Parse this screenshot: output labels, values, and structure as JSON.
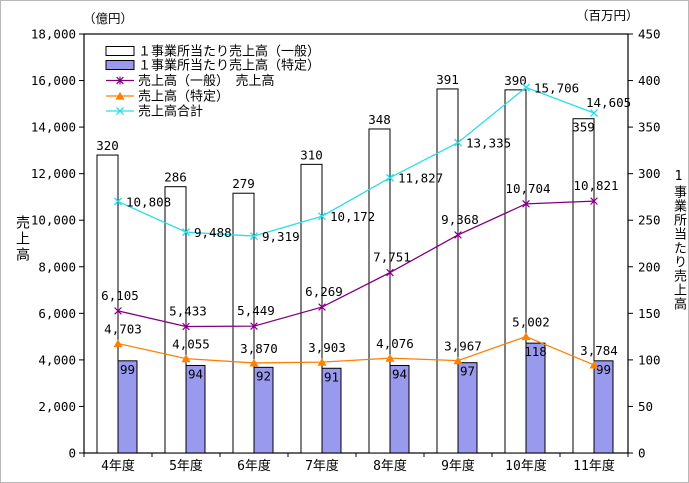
{
  "chart_data": {
    "type": "combo-bar-line",
    "categories": [
      "4年度",
      "5年度",
      "6年度",
      "7年度",
      "8年度",
      "9年度",
      "10年度",
      "11年度"
    ],
    "left_axis": {
      "unit": "（億円）",
      "label": "売上高",
      "min": 0,
      "max": 18000,
      "step": 2000,
      "tick_labels": [
        "18,000",
        "16,000",
        "14,000",
        "12,000",
        "10,000",
        "8,000",
        "6,000",
        "4,000",
        "2,000",
        "0"
      ]
    },
    "right_axis": {
      "unit": "（百万円）",
      "label": "1事業所当たり売上高",
      "min": 0,
      "max": 450,
      "step": 50,
      "tick_labels": [
        "450",
        "400",
        "350",
        "300",
        "250",
        "200",
        "150",
        "100",
        "50",
        "0"
      ]
    },
    "grid": "off",
    "series": [
      {
        "name": "１事業所当たり売上高（一般）",
        "type": "bar",
        "axis": "right",
        "fill": "#FFFFFF",
        "stroke": "#000000",
        "values": [
          320,
          286,
          279,
          310,
          348,
          391,
          390,
          359
        ],
        "labels": [
          "320",
          "286",
          "279",
          "310",
          "348",
          "391",
          "390",
          "359"
        ]
      },
      {
        "name": "１事業所当たり売上高（特定）",
        "type": "bar",
        "axis": "right",
        "fill": "#9999EE",
        "stroke": "#000000",
        "values": [
          99,
          94,
          92,
          91,
          94,
          97,
          118,
          99
        ],
        "labels": [
          "99",
          "94",
          "92",
          "91",
          "94",
          "97",
          "118",
          "99"
        ]
      },
      {
        "name": "売上高（一般）",
        "type": "line",
        "axis": "left",
        "color": "#800080",
        "marker": "asterisk",
        "values": [
          6105,
          5433,
          5449,
          6269,
          7751,
          9368,
          10704,
          10821
        ],
        "labels": [
          "6,105",
          "5,433",
          "5,449",
          "6,269",
          "7,751",
          "9,368",
          "10,704",
          "10,821"
        ]
      },
      {
        "name": "売上高（特定）",
        "type": "line",
        "axis": "left",
        "color": "#FF8000",
        "marker": "triangle",
        "values": [
          4703,
          4055,
          3870,
          3903,
          4076,
          3967,
          5002,
          3784
        ],
        "labels": [
          "4,703",
          "4,055",
          "3,870",
          "3,903",
          "4,076",
          "3,967",
          "5,002",
          "3,784"
        ]
      },
      {
        "name": "売上高合計",
        "type": "line",
        "axis": "left",
        "color": "#2EDDE8",
        "marker": "x",
        "values": [
          10808,
          9488,
          9319,
          10172,
          11827,
          13335,
          15706,
          14605
        ],
        "labels": [
          "10,808",
          "9,488",
          "9,319",
          "10,172",
          "11,827",
          "13,335",
          "15,706",
          "14,605"
        ]
      }
    ],
    "legend": {
      "position": "top-left-inside",
      "items": [
        {
          "label": "１事業所当たり売上高（一般）",
          "swatch": "bar",
          "color": "#FFFFFF",
          "marker": ""
        },
        {
          "label": "１事業所当たり売上高（特定）",
          "swatch": "bar",
          "color": "#9999EE",
          "marker": ""
        },
        {
          "label": "売上高（一般）　売上高",
          "swatch": "line",
          "color": "#800080",
          "marker": "asterisk"
        },
        {
          "label": "売上高（特定）",
          "swatch": "line",
          "color": "#FF8000",
          "marker": "triangle"
        },
        {
          "label": "売上高合計",
          "swatch": "line",
          "color": "#2EDDE8",
          "marker": "x"
        }
      ]
    }
  }
}
